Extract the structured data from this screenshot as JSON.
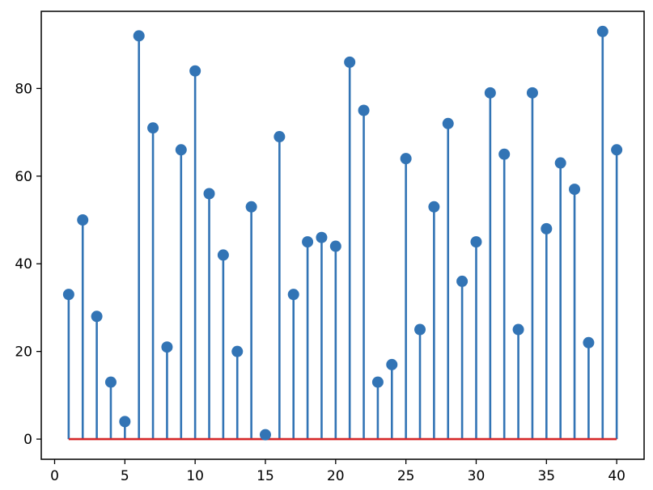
{
  "chart_data": {
    "type": "stem",
    "title": "",
    "xlabel": "",
    "ylabel": "",
    "x": [
      1,
      2,
      3,
      4,
      5,
      6,
      7,
      8,
      9,
      10,
      11,
      12,
      13,
      14,
      15,
      16,
      17,
      18,
      19,
      20,
      21,
      22,
      23,
      24,
      25,
      26,
      27,
      28,
      29,
      30,
      31,
      32,
      33,
      34,
      35,
      36,
      37,
      38,
      39,
      40
    ],
    "values": [
      33,
      50,
      28,
      13,
      4,
      92,
      71,
      21,
      66,
      84,
      56,
      42,
      20,
      53,
      1,
      69,
      33,
      45,
      46,
      44,
      86,
      75,
      13,
      17,
      64,
      25,
      53,
      72,
      36,
      45,
      79,
      65,
      25,
      79,
      48,
      63,
      57,
      22,
      93,
      66
    ],
    "xlim": [
      -0.95,
      41.95
    ],
    "ylim": [
      -4.6,
      97.6
    ],
    "xticks": [
      0,
      5,
      10,
      15,
      20,
      25,
      30,
      35,
      40
    ],
    "yticks": [
      0,
      20,
      40,
      60,
      80
    ],
    "baseline": 0,
    "grid": false,
    "colors": {
      "stem": "#3274b5",
      "marker": "#3274b5",
      "baseline": "#d62728",
      "axes": "#000000"
    }
  }
}
